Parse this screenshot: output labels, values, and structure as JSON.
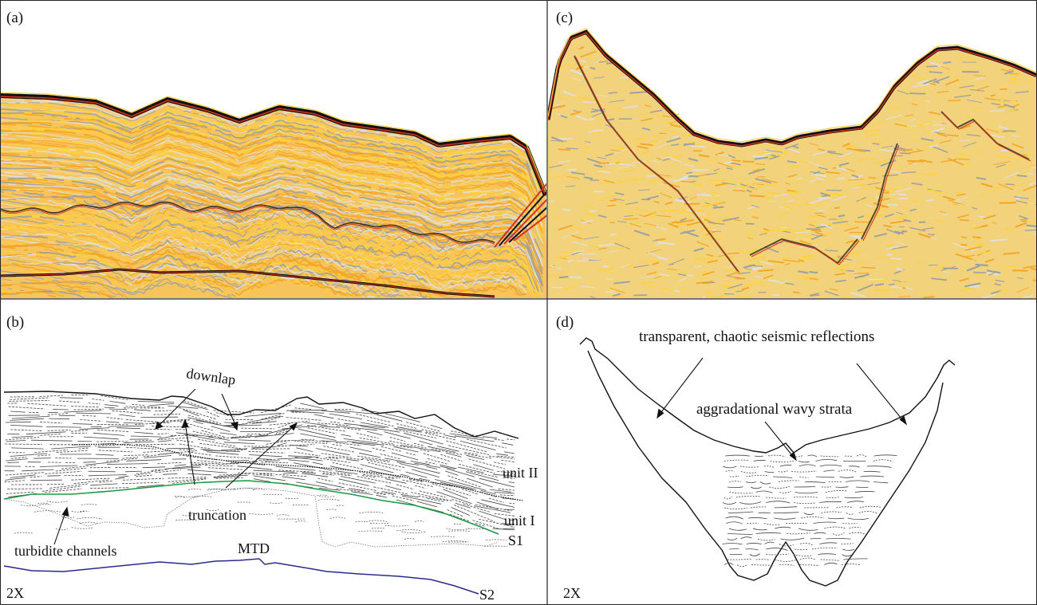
{
  "figure": {
    "panels": [
      {
        "id": "a",
        "label": "(a)",
        "content": "seismic-profile"
      },
      {
        "id": "c",
        "label": "(c)",
        "content": "seismic-profile"
      },
      {
        "id": "b",
        "label": "(b)",
        "content": "interpretation-sketch"
      },
      {
        "id": "d",
        "label": "(d)",
        "content": "interpretation-sketch"
      }
    ],
    "panel_b": {
      "annotations": {
        "downlap": "downlap",
        "unit_ii": "unit II",
        "truncation": "truncation",
        "unit_i": "unit I",
        "s1": "S1",
        "turbidite": "turbidite channels",
        "mtd": "MTD",
        "s2": "S2",
        "scale": "2X"
      },
      "colors": {
        "s1_horizon": "#1a9a45",
        "s2_horizon": "#2a2a8c"
      }
    },
    "panel_d": {
      "annotations": {
        "transparent": "transparent, chaotic seismic reflections",
        "aggradational": "aggradational wavy strata",
        "scale": "2X"
      }
    },
    "seismic_palette": [
      "#f5a623",
      "#ffd23f",
      "#9aa0a8",
      "#e0e0e0",
      "#111111",
      "#d4301f"
    ]
  }
}
